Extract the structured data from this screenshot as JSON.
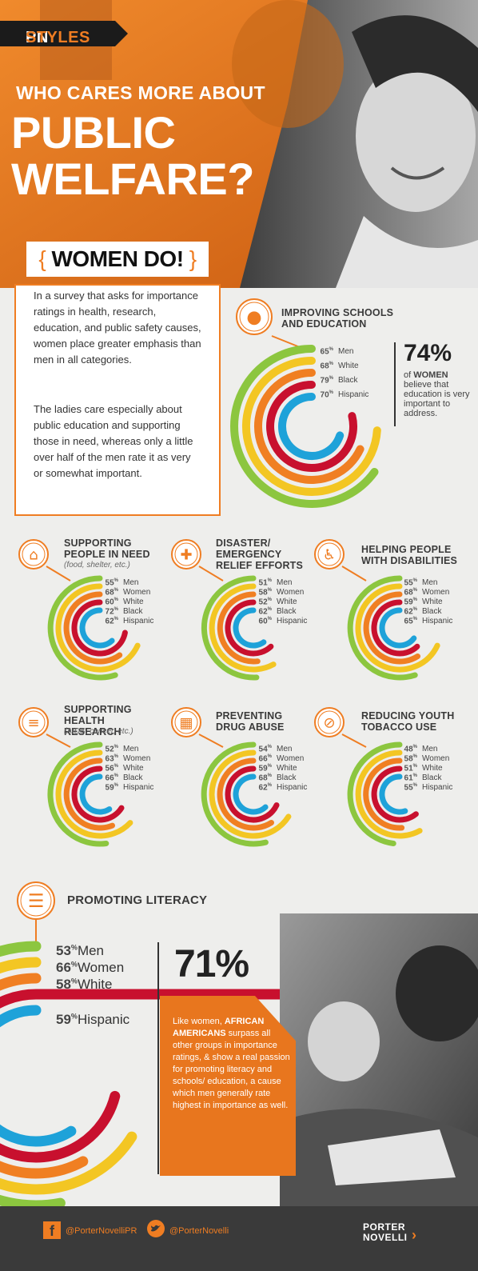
{
  "brand": {
    "pn": "PN",
    "styles": "STYLES"
  },
  "hero": {
    "subtitle": "WHO CARES MORE ABOUT",
    "title_line1": "PUBLIC",
    "title_line2": "WELFARE?"
  },
  "intro": {
    "heading": "WOMEN DO!",
    "p1": "In a survey that asks for importance ratings in health, research, education, and public safety causes, women place greater emphasis than men in all categories.",
    "p2": "The ladies care especially about public education and supporting those in need, whereas only a little over half of the men rate it as very or somewhat important."
  },
  "colors": {
    "orange": "#ef7d22",
    "green": "#8cc63f",
    "yellow": "#f3c623",
    "darkorange": "#f07f22",
    "red": "#c8102e",
    "blue": "#1ea2d9",
    "dark": "#3a3a3a"
  },
  "chart_data": [
    {
      "type": "radial-bar",
      "title": "IMPROVING SCHOOLS AND EDUCATION",
      "icon": "apple-icon",
      "series": [
        {
          "name": "Men",
          "value": 65
        },
        {
          "name": "Women",
          "value": 74
        },
        {
          "name": "White",
          "value": 68
        },
        {
          "name": "Black",
          "value": 79
        },
        {
          "name": "Hispanic",
          "value": 70
        }
      ],
      "callout": {
        "value": "74%",
        "line1": "of ",
        "emph": "WOMEN",
        "rest": "believe that education is very important to address."
      }
    },
    {
      "type": "radial-bar",
      "title": "SUPPORTING PEOPLE IN NEED",
      "subtitle": "(food, shelter, etc.)",
      "icon": "house-icon",
      "series": [
        {
          "name": "Men",
          "value": 55
        },
        {
          "name": "Women",
          "value": 68
        },
        {
          "name": "White",
          "value": 60
        },
        {
          "name": "Black",
          "value": 72
        },
        {
          "name": "Hispanic",
          "value": 62
        }
      ]
    },
    {
      "type": "radial-bar",
      "title": "DISASTER/ EMERGENCY RELIEF EFFORTS",
      "icon": "medical-cross-icon",
      "series": [
        {
          "name": "Men",
          "value": 51
        },
        {
          "name": "Women",
          "value": 58
        },
        {
          "name": "White",
          "value": 52
        },
        {
          "name": "Black",
          "value": 62
        },
        {
          "name": "Hispanic",
          "value": 60
        }
      ]
    },
    {
      "type": "radial-bar",
      "title": "HELPING PEOPLE WITH DISABILITIES",
      "icon": "wheelchair-icon",
      "series": [
        {
          "name": "Men",
          "value": 55
        },
        {
          "name": "Women",
          "value": 68
        },
        {
          "name": "White",
          "value": 59
        },
        {
          "name": "Black",
          "value": 62
        },
        {
          "name": "Hispanic",
          "value": 65
        }
      ]
    },
    {
      "type": "radial-bar",
      "title": "SUPPORTING HEALTH RESEARCH",
      "subtitle": "(AIDS, cancer, etc.)",
      "icon": "test-tubes-icon",
      "series": [
        {
          "name": "Men",
          "value": 52
        },
        {
          "name": "Women",
          "value": 63
        },
        {
          "name": "White",
          "value": 56
        },
        {
          "name": "Black",
          "value": 66
        },
        {
          "name": "Hispanic",
          "value": 59
        }
      ]
    },
    {
      "type": "radial-bar",
      "title": "PREVENTING DRUG ABUSE",
      "icon": "pill-bottle-icon",
      "series": [
        {
          "name": "Men",
          "value": 54
        },
        {
          "name": "Women",
          "value": 66
        },
        {
          "name": "White",
          "value": 59
        },
        {
          "name": "Black",
          "value": 68
        },
        {
          "name": "Hispanic",
          "value": 62
        }
      ]
    },
    {
      "type": "radial-bar",
      "title": "REDUCING YOUTH TOBACCO USE",
      "icon": "no-smoking-icon",
      "series": [
        {
          "name": "Men",
          "value": 48
        },
        {
          "name": "Women",
          "value": 58
        },
        {
          "name": "White",
          "value": 51
        },
        {
          "name": "Black",
          "value": 61
        },
        {
          "name": "Hispanic",
          "value": 55
        }
      ]
    },
    {
      "type": "radial-bar",
      "title": "PROMOTING LITERACY",
      "icon": "book-icon",
      "series": [
        {
          "name": "Men",
          "value": 53
        },
        {
          "name": "Women",
          "value": 66
        },
        {
          "name": "White",
          "value": 58
        },
        {
          "name": "Black",
          "value": 71
        },
        {
          "name": "Hispanic",
          "value": 59
        }
      ],
      "callout": {
        "value": "71%",
        "text_pre": "Like women, ",
        "emph": "AFRICAN AMERICANS",
        "text_post": " surpass all other groups in importance ratings, & show a real passion for promoting literacy and schools/ education, a cause which men generally rate highest in importance as well."
      }
    }
  ],
  "footer": {
    "facebook": "@PorterNovelliPR",
    "twitter": "@PorterNovelli",
    "logo_line1": "PORTER",
    "logo_line2": "NOVELLI"
  }
}
